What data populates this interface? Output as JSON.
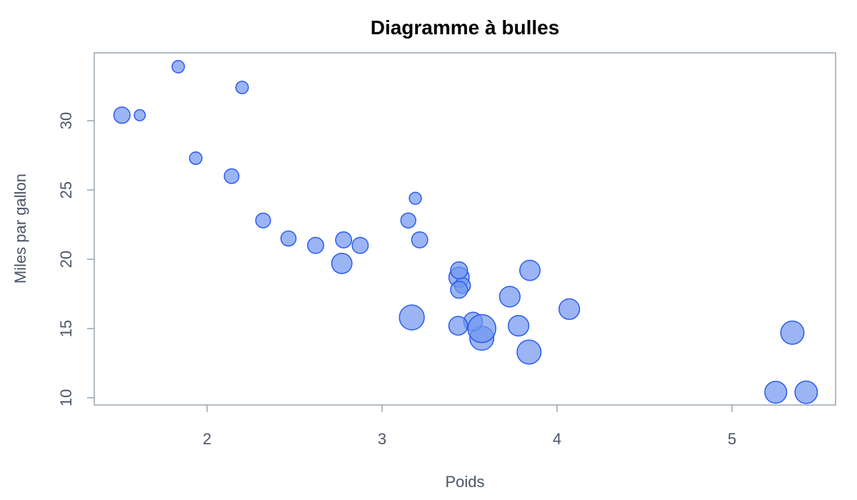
{
  "chart_data": {
    "type": "scatter",
    "title": "Diagramme à bulles",
    "xlabel": "Poids",
    "ylabel": "Miles par gallon",
    "x": [
      2.62,
      2.875,
      2.32,
      3.215,
      3.44,
      3.46,
      3.57,
      3.19,
      3.15,
      3.44,
      3.44,
      4.07,
      3.73,
      3.78,
      5.25,
      5.424,
      5.345,
      2.2,
      1.615,
      1.835,
      2.465,
      3.52,
      3.435,
      3.84,
      3.845,
      1.935,
      2.14,
      1.513,
      3.17,
      2.77,
      3.57,
      2.78
    ],
    "y": [
      21.0,
      21.0,
      22.8,
      21.4,
      18.7,
      18.1,
      14.3,
      24.4,
      22.8,
      19.2,
      17.8,
      16.4,
      17.3,
      15.2,
      10.4,
      10.4,
      14.7,
      32.4,
      30.4,
      33.9,
      21.5,
      15.5,
      15.2,
      13.3,
      19.2,
      27.3,
      26.0,
      30.4,
      15.8,
      19.7,
      15.0,
      21.4
    ],
    "size": [
      110,
      110,
      93,
      110,
      175,
      105,
      245,
      62,
      95,
      123,
      123,
      180,
      180,
      180,
      205,
      215,
      230,
      66,
      52,
      65,
      97,
      150,
      150,
      245,
      175,
      66,
      91,
      113,
      264,
      175,
      335,
      109
    ],
    "color": "#7096f0",
    "edge_color": "#2a5af0",
    "xlim": [
      1.355,
      5.592
    ],
    "ylim": [
      9.48,
      34.9
    ],
    "xticks": [
      2,
      3,
      4,
      5
    ],
    "yticks": [
      10,
      15,
      20,
      25,
      30
    ]
  }
}
